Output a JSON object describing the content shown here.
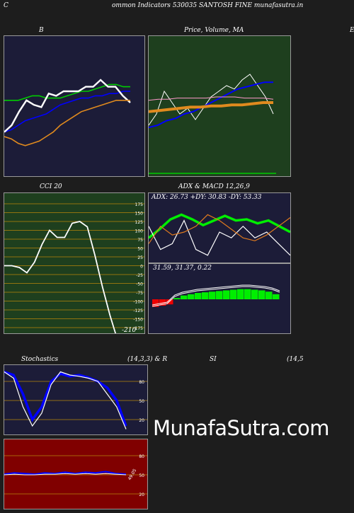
{
  "header": {
    "left": "C",
    "title": "ommon  Indicators 530035 SANTOSH FINE munafasutra.in",
    "right": "E"
  },
  "watermark": "MunafaSutra.com",
  "colors": {
    "page_bg": "#1d1d1d",
    "navy": "#1c1c38",
    "green_bg": "#1e3f1e",
    "maroon": "#800000"
  },
  "chart_data": [
    {
      "type": "line",
      "id": "bollinger",
      "title": "B",
      "series": [
        {
          "color": "#00cc00",
          "values": [
            0.62,
            0.62,
            0.62,
            0.64,
            0.66,
            0.66,
            0.64,
            0.64,
            0.64,
            0.66,
            0.68,
            0.7,
            0.7,
            0.72,
            0.74,
            0.76,
            0.76,
            0.74,
            0.74
          ]
        },
        {
          "color": "#0000ff",
          "values": [
            0.34,
            0.36,
            0.4,
            0.44,
            0.46,
            0.48,
            0.5,
            0.54,
            0.58,
            0.6,
            0.62,
            0.64,
            0.64,
            0.66,
            0.66,
            0.68,
            0.68,
            0.7,
            0.7
          ]
        },
        {
          "color": "#ffffff",
          "values": [
            0.34,
            0.4,
            0.52,
            0.62,
            0.58,
            0.56,
            0.68,
            0.66,
            0.7,
            0.7,
            0.7,
            0.74,
            0.74,
            0.8,
            0.74,
            0.74,
            0.66,
            0.6
          ]
        },
        {
          "color": "#e08a1e",
          "values": [
            0.3,
            0.28,
            0.24,
            0.22,
            0.24,
            0.26,
            0.3,
            0.34,
            0.4,
            0.44,
            0.48,
            0.52,
            0.54,
            0.56,
            0.58,
            0.6,
            0.62,
            0.62,
            0.62
          ]
        }
      ]
    },
    {
      "type": "line",
      "id": "price-ma",
      "title": "Price,  Volume,  MA",
      "series": [
        {
          "color": "#ffffff",
          "values": [
            0.4,
            0.5,
            0.7,
            0.6,
            0.5,
            0.55,
            0.45,
            0.55,
            0.65,
            0.7,
            0.75,
            0.72,
            0.8,
            0.85,
            0.75,
            0.65,
            0.5
          ]
        },
        {
          "color": "#0000ff",
          "values": [
            0.38,
            0.4,
            0.44,
            0.46,
            0.5,
            0.52,
            0.56,
            0.6,
            0.64,
            0.68,
            0.72,
            0.74,
            0.76,
            0.78,
            0.78
          ]
        },
        {
          "color": "#ff99cc",
          "values": [
            0.62,
            0.63,
            0.63,
            0.64,
            0.64,
            0.64,
            0.64,
            0.65,
            0.65,
            0.65,
            0.64,
            0.64,
            0.64,
            0.63
          ]
        },
        {
          "color": "#e08a1e",
          "values": [
            0.52,
            0.53,
            0.54,
            0.55,
            0.56,
            0.56,
            0.57,
            0.57,
            0.58,
            0.58,
            0.59,
            0.6,
            0.6
          ]
        }
      ]
    },
    {
      "type": "line",
      "id": "cci",
      "title": "CCI 20",
      "y_ticks": [
        175,
        150,
        125,
        100,
        75,
        50,
        25,
        0,
        -25,
        -50,
        -75,
        -100,
        -125,
        -150,
        -175
      ],
      "last_label": "-210",
      "values": [
        0,
        0,
        -5,
        -20,
        10,
        60,
        100,
        80,
        80,
        120,
        125,
        110,
        30,
        -60,
        -140,
        -210
      ]
    },
    {
      "type": "line",
      "id": "adx",
      "title": "ADX  & MACD 12,26,9",
      "legend": "ADX: 26.73  +DY: 30.83 -DY: 53.33",
      "series": [
        {
          "name": "ADX",
          "color": "#00ee00",
          "values": [
            0.4,
            0.55,
            0.72,
            0.8,
            0.72,
            0.62,
            0.7,
            0.78,
            0.7,
            0.72,
            0.65,
            0.7,
            0.6,
            0.5
          ]
        },
        {
          "name": "+DY",
          "color": "#ffffff",
          "values": [
            0.6,
            0.2,
            0.3,
            0.7,
            0.2,
            0.1,
            0.5,
            0.4,
            0.6,
            0.4,
            0.5,
            0.3,
            0.1
          ]
        },
        {
          "name": "-DY",
          "color": "#e07a1e",
          "values": [
            0.3,
            0.6,
            0.45,
            0.5,
            0.6,
            0.8,
            0.7,
            0.55,
            0.4,
            0.35,
            0.45,
            0.6,
            0.75
          ]
        }
      ]
    },
    {
      "type": "bar",
      "id": "macd",
      "legend": "31.59,  31.37,  0.22",
      "values": [
        -0.6,
        -0.5,
        -0.4,
        0.1,
        0.3,
        0.4,
        0.5,
        0.55,
        0.6,
        0.65,
        0.7,
        0.75,
        0.8,
        0.8,
        0.75,
        0.7,
        0.6,
        0.4
      ]
    },
    {
      "type": "line",
      "id": "stochastics",
      "title": "Stochastics",
      "params": "(14,3,3) & R",
      "y_ticks": [
        80,
        50,
        20
      ],
      "series": [
        {
          "color": "#0000ff",
          "values": [
            95,
            90,
            60,
            20,
            40,
            80,
            92,
            88,
            90,
            86,
            80,
            70,
            50,
            10
          ]
        },
        {
          "color": "#ffffff",
          "values": [
            95,
            85,
            40,
            10,
            30,
            75,
            95,
            90,
            88,
            85,
            80,
            60,
            40,
            5
          ]
        }
      ]
    },
    {
      "type": "line",
      "id": "rsi",
      "title": "SI",
      "params": "(14,5",
      "y_ticks": [
        80,
        50,
        20
      ],
      "label": "49.05",
      "series": [
        {
          "color": "#0000ff",
          "values": [
            51,
            53,
            52,
            51,
            53,
            52,
            54,
            52,
            54,
            53,
            55,
            52,
            51
          ]
        },
        {
          "color": "#ffffff",
          "values": [
            50,
            51,
            50,
            50,
            51,
            51,
            52,
            51,
            52,
            51,
            52,
            51,
            50
          ]
        }
      ]
    }
  ]
}
